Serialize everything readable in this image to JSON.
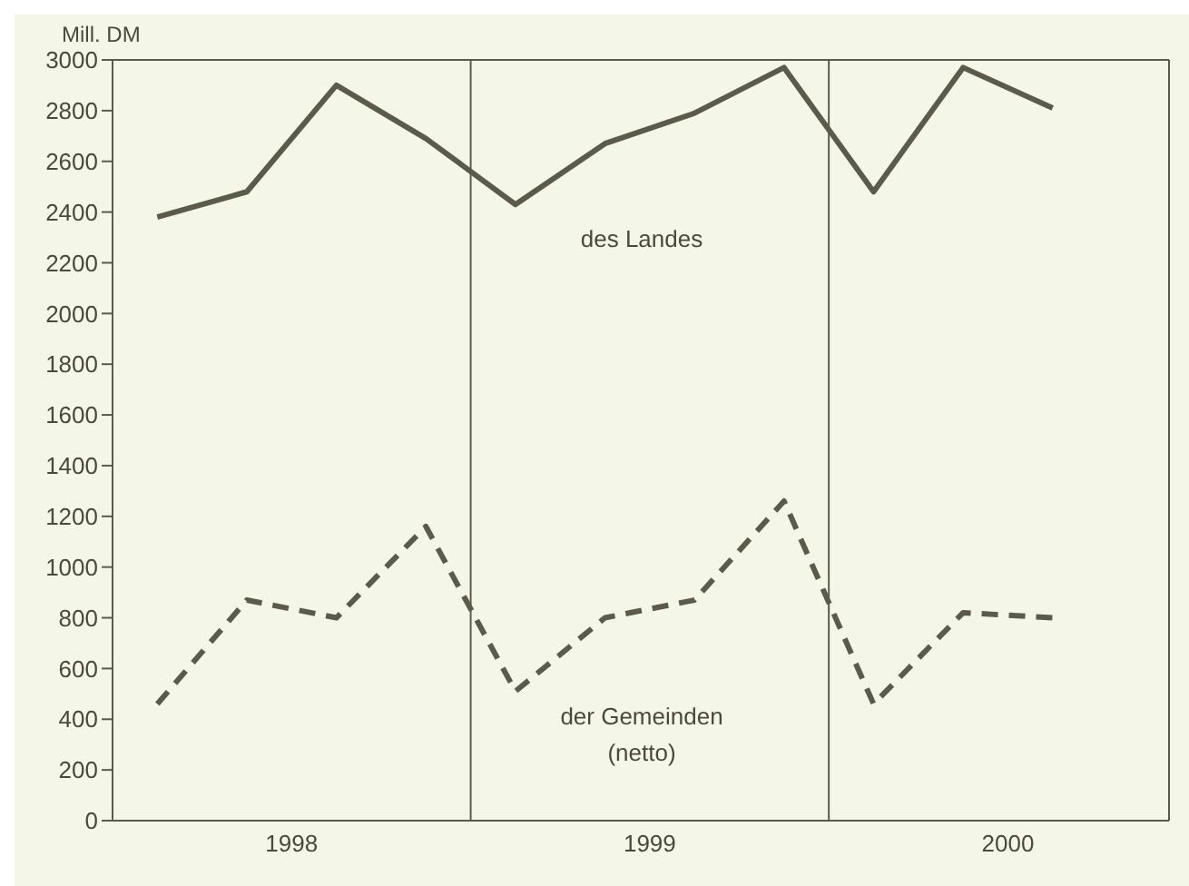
{
  "chart_data": {
    "type": "line",
    "ylabel": "Mill. DM",
    "x": [
      1998.125,
      1998.375,
      1998.625,
      1998.875,
      1999.125,
      1999.375,
      1999.625,
      1999.875,
      2000.125,
      2000.375,
      2000.625
    ],
    "series": [
      {
        "name": "des Landes",
        "color": "#5b5b4c",
        "line_style": "solid",
        "values": [
          2380,
          2480,
          2900,
          2690,
          2430,
          2670,
          2790,
          2970,
          2480,
          2970,
          2810
        ]
      },
      {
        "name": "der Gemeinden (netto)",
        "color": "#5b5b4c",
        "line_style": "dashed",
        "values": [
          460,
          870,
          800,
          1160,
          510,
          800,
          870,
          1260,
          460,
          820,
          800
        ]
      }
    ],
    "xlim": [
      1998,
      2000.95
    ],
    "xticks": [
      {
        "value": 1998.5,
        "label": "1998"
      },
      {
        "value": 1999.5,
        "label": "1999"
      },
      {
        "value": 2000.5,
        "label": "2000"
      }
    ],
    "ylim": [
      0,
      3000
    ],
    "yticks": [
      0,
      200,
      400,
      600,
      800,
      1000,
      1200,
      1400,
      1600,
      1800,
      2000,
      2200,
      2400,
      2600,
      2800,
      3000
    ],
    "ref_lines": [
      {
        "axis": "x",
        "value": 1999,
        "color": "#5b5b4c"
      },
      {
        "axis": "x",
        "value": 2000,
        "color": "#5b5b4c"
      }
    ],
    "marker": "none"
  }
}
